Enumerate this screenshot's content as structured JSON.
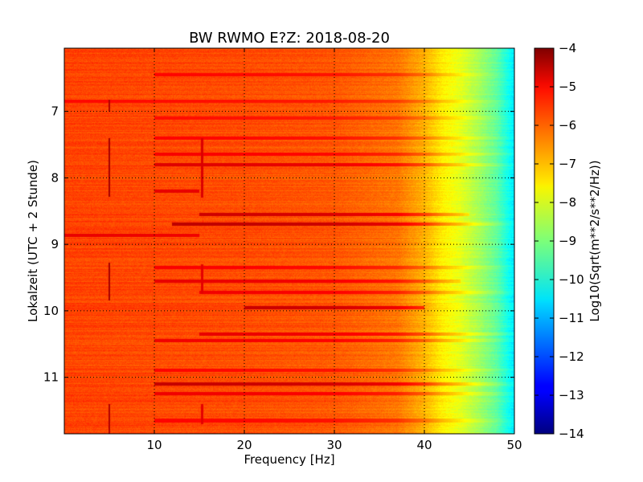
{
  "chart_data": {
    "type": "heatmap",
    "title": "BW RWMO E?Z: 2018-08-20",
    "xlabel": "Frequency [Hz]",
    "ylabel": "Lokalzeit (UTC + 2 Stunde)",
    "xlim": [
      0,
      50
    ],
    "ylim": [
      6.05,
      11.85
    ],
    "y_inverted": true,
    "grid": true,
    "x_ticks": [
      10,
      20,
      30,
      40,
      50
    ],
    "y_ticks": [
      7,
      8,
      9,
      10,
      11
    ],
    "colorbar": {
      "label": "Log10(Sqrt(m**2/s**2/Hz))",
      "range": [
        -14,
        -4
      ],
      "ticks": [
        -4,
        -5,
        -6,
        -7,
        -8,
        -9,
        -10,
        -11,
        -12,
        -13,
        -14
      ],
      "colormap": "jet"
    },
    "background_level": -6.0,
    "frequency_profile": [
      {
        "freq": 0,
        "value": -5.9
      },
      {
        "freq": 20,
        "value": -6.0
      },
      {
        "freq": 30,
        "value": -6.1
      },
      {
        "freq": 37,
        "value": -6.4
      },
      {
        "freq": 40,
        "value": -7.0
      },
      {
        "freq": 42,
        "value": -7.6
      },
      {
        "freq": 44,
        "value": -8.0
      },
      {
        "freq": 46,
        "value": -8.6
      },
      {
        "freq": 48,
        "value": -9.3
      },
      {
        "freq": 50,
        "value": -10.5
      }
    ],
    "horizontal_bands": [
      {
        "time": 6.45,
        "f_start": 10,
        "f_end": 50,
        "value": -5.2
      },
      {
        "time": 6.85,
        "f_start": 0,
        "f_end": 50,
        "value": -5.3
      },
      {
        "time": 7.1,
        "f_start": 10,
        "f_end": 50,
        "value": -5.3
      },
      {
        "time": 7.4,
        "f_start": 10,
        "f_end": 50,
        "value": -5.2
      },
      {
        "time": 7.65,
        "f_start": 10,
        "f_end": 50,
        "value": -5.1
      },
      {
        "time": 7.8,
        "f_start": 10,
        "f_end": 50,
        "value": -4.8
      },
      {
        "time": 8.2,
        "f_start": 10,
        "f_end": 15,
        "value": -4.9
      },
      {
        "time": 8.55,
        "f_start": 15,
        "f_end": 45,
        "value": -4.6
      },
      {
        "time": 8.7,
        "f_start": 12,
        "f_end": 50,
        "value": -4.4
      },
      {
        "time": 8.87,
        "f_start": 0,
        "f_end": 15,
        "value": -5.0
      },
      {
        "time": 9.35,
        "f_start": 10,
        "f_end": 50,
        "value": -5.1
      },
      {
        "time": 9.55,
        "f_start": 10,
        "f_end": 44,
        "value": -4.9
      },
      {
        "time": 9.72,
        "f_start": 15,
        "f_end": 50,
        "value": -5.0
      },
      {
        "time": 9.95,
        "f_start": 20,
        "f_end": 40,
        "value": -4.5
      },
      {
        "time": 10.35,
        "f_start": 15,
        "f_end": 50,
        "value": -4.9
      },
      {
        "time": 10.45,
        "f_start": 10,
        "f_end": 50,
        "value": -5.0
      },
      {
        "time": 10.9,
        "f_start": 10,
        "f_end": 50,
        "value": -5.2
      },
      {
        "time": 11.1,
        "f_start": 10,
        "f_end": 50,
        "value": -4.5
      },
      {
        "time": 11.25,
        "f_start": 10,
        "f_end": 50,
        "value": -5.0
      },
      {
        "time": 11.65,
        "f_start": 10,
        "f_end": 50,
        "value": -5.2
      }
    ],
    "vertical_lines": [
      {
        "freq": 5.0,
        "t_start": 6.82,
        "t_end": 7.0,
        "value": -4.5
      },
      {
        "freq": 5.0,
        "t_start": 7.4,
        "t_end": 8.28,
        "value": -4.4
      },
      {
        "freq": 5.0,
        "t_start": 9.28,
        "t_end": 9.85,
        "value": -4.4
      },
      {
        "freq": 5.0,
        "t_start": 11.4,
        "t_end": 11.85,
        "value": -4.5
      },
      {
        "freq": 15.3,
        "t_start": 7.4,
        "t_end": 8.3,
        "value": -4.9
      },
      {
        "freq": 15.3,
        "t_start": 9.3,
        "t_end": 9.75,
        "value": -5.0
      },
      {
        "freq": 15.3,
        "t_start": 11.4,
        "t_end": 11.7,
        "value": -5.0
      }
    ]
  }
}
